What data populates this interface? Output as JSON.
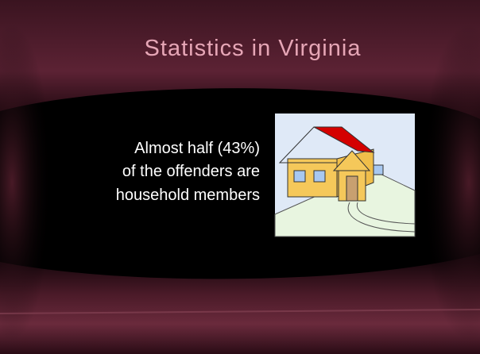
{
  "slide": {
    "title": "Statistics in Virginia",
    "body_lines": [
      "Almost half (43%)",
      "of the offenders are",
      "household members"
    ]
  }
}
